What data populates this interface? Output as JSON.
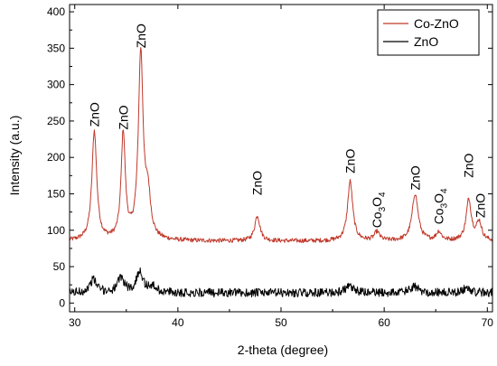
{
  "chart_data": {
    "type": "line",
    "xlabel": "2-theta (degree)",
    "ylabel": "Intensity (a.u.)",
    "xlim": [
      29.5,
      70.5
    ],
    "ylim": [
      -12,
      410
    ],
    "xticks": [
      "30",
      "40",
      "50",
      "60",
      "70"
    ],
    "yticks": [
      "0",
      "50",
      "100",
      "150",
      "200",
      "250",
      "300",
      "350",
      "400"
    ],
    "legend_position": "top-right",
    "grid": false,
    "series": [
      {
        "name": "Co-ZnO",
        "color": "#c0392b",
        "baseline": 85,
        "noise": 3,
        "peaks": [
          {
            "x": 31.9,
            "height": 150,
            "width": 0.28
          },
          {
            "x": 34.7,
            "height": 146,
            "width": 0.24
          },
          {
            "x": 36.4,
            "height": 255,
            "width": 0.28
          },
          {
            "x": 37.1,
            "height": 55,
            "width": 0.3
          },
          {
            "x": 47.7,
            "height": 35,
            "width": 0.3
          },
          {
            "x": 56.7,
            "height": 82,
            "width": 0.3
          },
          {
            "x": 59.3,
            "height": 12,
            "width": 0.3
          },
          {
            "x": 63.0,
            "height": 65,
            "width": 0.35
          },
          {
            "x": 65.3,
            "height": 12,
            "width": 0.3
          },
          {
            "x": 68.2,
            "height": 56,
            "width": 0.3
          },
          {
            "x": 69.2,
            "height": 25,
            "width": 0.3
          }
        ]
      },
      {
        "name": "ZnO",
        "color": "#000000",
        "baseline": 14,
        "noise": 6,
        "peaks": [
          {
            "x": 31.8,
            "height": 18,
            "width": 0.4
          },
          {
            "x": 34.5,
            "height": 20,
            "width": 0.4
          },
          {
            "x": 36.3,
            "height": 30,
            "width": 0.35
          },
          {
            "x": 37.5,
            "height": 8,
            "width": 0.5
          },
          {
            "x": 56.6,
            "height": 8,
            "width": 0.5
          },
          {
            "x": 62.9,
            "height": 8,
            "width": 0.5
          },
          {
            "x": 68.0,
            "height": 6,
            "width": 0.5
          }
        ]
      }
    ],
    "annotations": [
      {
        "main": "ZnO",
        "x": 31.9,
        "y": 242
      },
      {
        "main": "ZnO",
        "x": 34.7,
        "y": 238
      },
      {
        "main": "ZnO",
        "x": 36.4,
        "y": 350
      },
      {
        "main": "ZnO",
        "x": 47.7,
        "y": 148
      },
      {
        "main": "ZnO",
        "x": 56.7,
        "y": 178
      },
      {
        "main": "Co",
        "sub1": "3",
        "mid": "O",
        "sub2": "4",
        "x": 59.3,
        "y": 103
      },
      {
        "main": "ZnO",
        "x": 63.0,
        "y": 155
      },
      {
        "main": "Co",
        "sub1": "3",
        "mid": "O",
        "sub2": "4",
        "x": 65.3,
        "y": 108
      },
      {
        "main": "ZnO",
        "x": 68.2,
        "y": 172
      },
      {
        "main": "ZnO",
        "x": 69.3,
        "y": 117
      }
    ]
  }
}
